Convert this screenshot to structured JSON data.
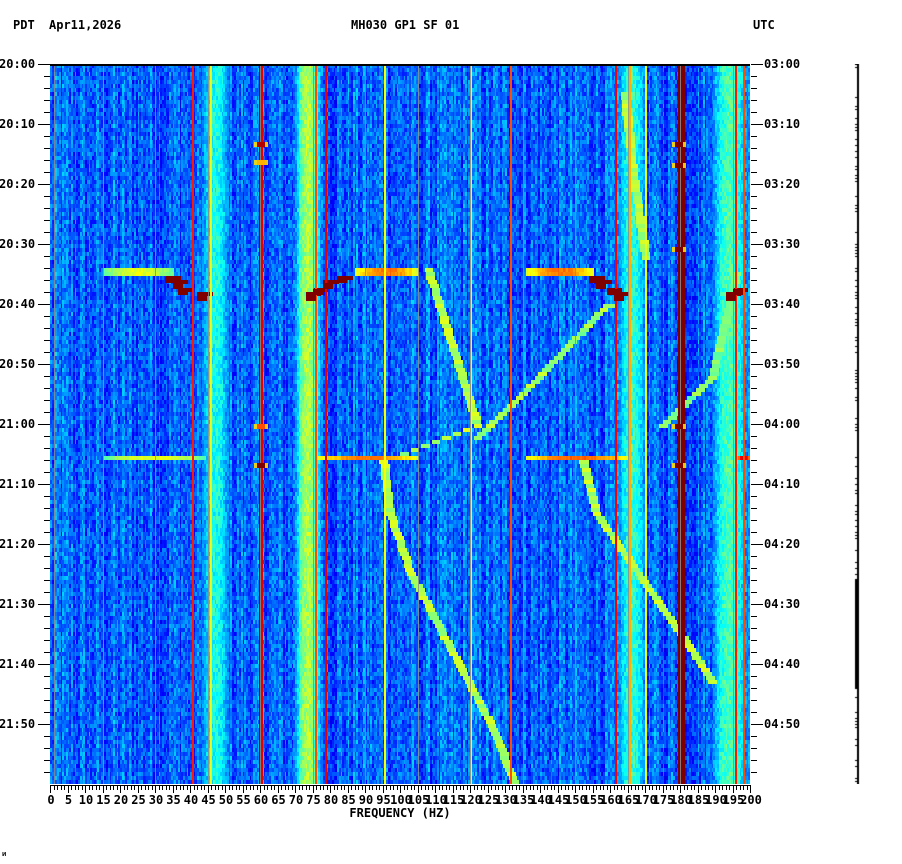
{
  "header": {
    "left_timezone": "PDT",
    "date": "Apr11,2026",
    "station": "MH030 GP1 SF 01",
    "right_timezone": "UTC"
  },
  "footer": {
    "corner_mark": "ᴎ"
  },
  "chart_data": {
    "type": "heatmap",
    "title": "MH030 GP1 SF 01",
    "subtitle": "Apr11,2026",
    "xlabel": "FREQUENCY (HZ)",
    "ylabel_left": "PDT",
    "ylabel_right": "UTC",
    "xlim": [
      0,
      200
    ],
    "x_ticks": [
      0,
      5,
      10,
      15,
      20,
      25,
      30,
      35,
      40,
      45,
      50,
      55,
      60,
      65,
      70,
      75,
      80,
      85,
      90,
      95,
      100,
      105,
      110,
      115,
      120,
      125,
      130,
      135,
      140,
      145,
      150,
      155,
      160,
      165,
      170,
      175,
      180,
      185,
      190,
      195,
      200
    ],
    "x_tick_labels": [
      "0",
      "5",
      "10",
      "15",
      "20",
      "25",
      "30",
      "35",
      "40",
      "45",
      "50",
      "55",
      "60",
      "65",
      "70",
      "75",
      "80",
      "85",
      "90",
      "95",
      "100",
      "105",
      "110",
      "115",
      "120",
      "125",
      "130",
      "135",
      "140",
      "145",
      "150",
      "155",
      "160",
      "165",
      "170",
      "175",
      "180",
      "185",
      "190",
      "195",
      "200"
    ],
    "y_range_minutes": [
      0,
      120
    ],
    "y_ticks_left": [
      "20:00",
      "20:10",
      "20:20",
      "20:30",
      "20:40",
      "20:50",
      "21:00",
      "21:10",
      "21:20",
      "21:30",
      "21:40",
      "21:50"
    ],
    "y_ticks_right": [
      "03:00",
      "03:10",
      "03:20",
      "03:30",
      "03:40",
      "03:50",
      "04:00",
      "04:10",
      "04:20",
      "04:30",
      "04:40",
      "04:50"
    ],
    "minor_tick_minutes": 2,
    "grid": false,
    "colormap": "jet",
    "background_level": 0.22,
    "broad_bands": [
      {
        "f0": 43,
        "f1": 51,
        "level": 0.4
      },
      {
        "f0": 70,
        "f1": 77,
        "level": 0.55
      },
      {
        "f0": 162,
        "f1": 170,
        "level": 0.42
      },
      {
        "f0": 189,
        "f1": 199,
        "level": 0.45
      }
    ],
    "narrow_lines": [
      {
        "f": 40.5,
        "level": 0.85
      },
      {
        "f": 45.8,
        "level": 0.6
      },
      {
        "f": 59.6,
        "level": 1.0,
        "width": 1.0
      },
      {
        "f": 60.3,
        "level": 0.9
      },
      {
        "f": 75.8,
        "level": 0.8
      },
      {
        "f": 78.5,
        "level": 0.9
      },
      {
        "f": 95.5,
        "level": 0.62
      },
      {
        "f": 120,
        "level": 0.62
      },
      {
        "f": 131.5,
        "level": 0.8
      },
      {
        "f": 161.5,
        "level": 0.88
      },
      {
        "f": 165.5,
        "level": 0.7
      },
      {
        "f": 170,
        "level": 0.6
      },
      {
        "f": 179.5,
        "level": 1.0,
        "width": 2.0
      },
      {
        "f": 195.8,
        "level": 0.85
      },
      {
        "f": 198.0,
        "level": 0.8
      }
    ],
    "gray_lines_hz": [
      1,
      15,
      30,
      45,
      60,
      75,
      90,
      105,
      120,
      135,
      150,
      165,
      180,
      195
    ],
    "events": [
      {
        "t": 34.5,
        "f0": 15,
        "f1": 35,
        "level": 0.55,
        "rows": 2
      },
      {
        "t": 34.5,
        "f0": 87,
        "f1": 105,
        "level": 0.7,
        "rows": 2
      },
      {
        "t": 34.5,
        "f0": 136,
        "f1": 155,
        "level": 0.7,
        "rows": 2
      },
      {
        "t": 65.5,
        "f0": 15,
        "f1": 44,
        "level": 0.55,
        "rows": 1
      },
      {
        "t": 65.5,
        "f0": 76,
        "f1": 105,
        "level": 0.7,
        "rows": 1
      },
      {
        "t": 65.5,
        "f0": 136,
        "f1": 165,
        "level": 0.72,
        "rows": 1
      },
      {
        "t": 65.5,
        "f0": 196,
        "f1": 200,
        "level": 0.85,
        "rows": 1
      }
    ],
    "staircases": [
      {
        "points": [
          [
            35.5,
            35
          ],
          [
            36.5,
            37
          ],
          [
            37.5,
            38.5
          ],
          [
            38.5,
            44
          ]
        ],
        "level": 1.0
      },
      {
        "points": [
          [
            35.5,
            84
          ],
          [
            36.5,
            80
          ],
          [
            37.5,
            77
          ],
          [
            38.5,
            75
          ]
        ],
        "level": 1.0
      },
      {
        "points": [
          [
            35.5,
            156
          ],
          [
            36.5,
            158
          ],
          [
            37.5,
            161
          ],
          [
            38.5,
            163
          ]
        ],
        "level": 1.0
      },
      {
        "points": [
          [
            37.5,
            197
          ],
          [
            38.5,
            195
          ]
        ],
        "level": 1.0
      }
    ],
    "spots": [
      {
        "t": 13,
        "f": 60,
        "level": 0.95
      },
      {
        "t": 16,
        "f": 60,
        "level": 0.7
      },
      {
        "t": 66.5,
        "f": 60,
        "level": 1.0
      },
      {
        "t": 60,
        "f": 60,
        "level": 0.8
      },
      {
        "t": 13,
        "f": 179.5,
        "level": 1.0
      },
      {
        "t": 16.5,
        "f": 179.5,
        "level": 1.0
      },
      {
        "t": 30.5,
        "f": 179.5,
        "level": 1.0
      },
      {
        "t": 60,
        "f": 179.5,
        "level": 1.0
      },
      {
        "t": 66.5,
        "f": 179.5,
        "level": 1.0
      }
    ],
    "diagonal_tracks": [
      {
        "points": [
          [
            34,
            108
          ],
          [
            60,
            122
          ],
          [
            66,
            95
          ],
          [
            75,
            97
          ],
          [
            85,
            103
          ],
          [
            100,
            117
          ],
          [
            110,
            126
          ],
          [
            120,
            133
          ]
        ],
        "level": 0.5
      },
      {
        "points": [
          [
            40,
            160
          ],
          [
            55,
            135
          ],
          [
            62,
            122
          ]
        ],
        "level": 0.48
      },
      {
        "points": [
          [
            5,
            164
          ],
          [
            20,
            167
          ],
          [
            32,
            170
          ]
        ],
        "level": 0.5
      },
      {
        "points": [
          [
            66,
            152
          ],
          [
            75,
            156
          ],
          [
            85,
            168
          ],
          [
            95,
            180
          ],
          [
            103,
            189
          ]
        ],
        "level": 0.5
      },
      {
        "points": [
          [
            35,
            196
          ],
          [
            52,
            189
          ],
          [
            60,
            175
          ]
        ],
        "level": 0.45
      }
    ]
  },
  "side_trace": {
    "description": "amplitude trace column"
  }
}
